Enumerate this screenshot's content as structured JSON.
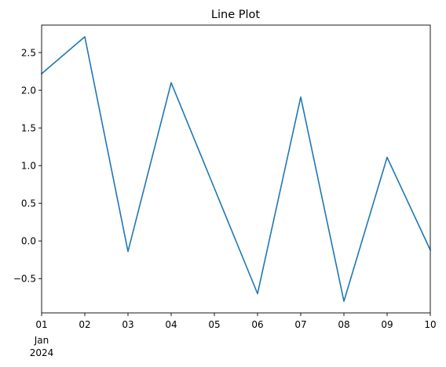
{
  "chart_data": {
    "type": "line",
    "title": "Line Plot",
    "xlabel": "",
    "ylabel": "",
    "x": [
      "2024-01-01",
      "2024-01-02",
      "2024-01-03",
      "2024-01-04",
      "2024-01-05",
      "2024-01-06",
      "2024-01-07",
      "2024-01-08",
      "2024-01-09",
      "2024-01-10"
    ],
    "x_tick_labels": [
      "01",
      "02",
      "03",
      "04",
      "05",
      "06",
      "07",
      "08",
      "09",
      "10"
    ],
    "x_tick_sublabel": {
      "month": "Jan",
      "year": "2024"
    },
    "series": [
      {
        "values": [
          2.22,
          2.71,
          -0.14,
          2.1,
          0.7,
          -0.7,
          1.91,
          -0.8,
          1.11,
          -0.12
        ]
      }
    ],
    "ylim": [
      -0.955,
      2.865
    ],
    "y_ticks": [
      -0.5,
      0.0,
      0.5,
      1.0,
      1.5,
      2.0,
      2.5
    ],
    "y_tick_labels": [
      "−0.5",
      "0.0",
      "0.5",
      "1.0",
      "1.5",
      "2.0",
      "2.5"
    ],
    "grid": false,
    "colors": {
      "line": "#1f77b4"
    }
  }
}
